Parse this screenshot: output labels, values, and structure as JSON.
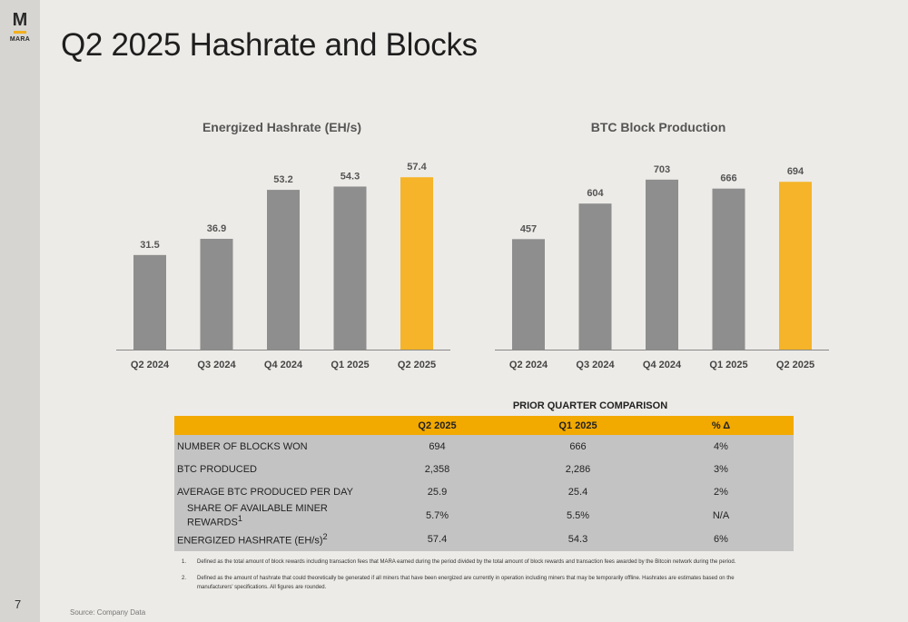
{
  "brand": {
    "letter": "M",
    "name": "MARA",
    "accent": "#f2b01e"
  },
  "page": {
    "title": "Q2 2025 Hashrate and Blocks",
    "number": "7",
    "source": "Source: Company Data"
  },
  "colors": {
    "bar": "#8e8e8e",
    "highlight": "#f5b429",
    "axis": "#888888",
    "table_header": "#f2a900",
    "table_body": "#c3c3c3"
  },
  "chart_data": [
    {
      "type": "bar",
      "title": "Energized Hashrate (EH/s)",
      "categories": [
        "Q2 2024",
        "Q3 2024",
        "Q4 2024",
        "Q1 2025",
        "Q2 2025"
      ],
      "values": [
        31.5,
        36.9,
        53.2,
        54.3,
        57.4
      ],
      "value_labels": [
        "31.5",
        "36.9",
        "53.2",
        "54.3",
        "57.4"
      ],
      "highlight_index": 4,
      "xlabel": "",
      "ylabel": "",
      "ylim": [
        0,
        62
      ],
      "grid": false,
      "legend": "none"
    },
    {
      "type": "bar",
      "title": "BTC Block Production",
      "categories": [
        "Q2 2024",
        "Q3 2024",
        "Q4 2024",
        "Q1 2025",
        "Q2 2025"
      ],
      "values": [
        457,
        604,
        703,
        666,
        694
      ],
      "value_labels": [
        "457",
        "604",
        "703",
        "666",
        "694"
      ],
      "highlight_index": 4,
      "xlabel": "",
      "ylabel": "",
      "ylim": [
        0,
        770
      ],
      "grid": false,
      "legend": "none"
    }
  ],
  "comparison": {
    "title": "PRIOR QUARTER COMPARISON",
    "headers": [
      "",
      "Q2 2025",
      "Q1 2025",
      "% Δ"
    ],
    "rows": [
      {
        "label": "NUMBER OF BLOCKS WON",
        "sup": "",
        "indent": false,
        "q2": "694",
        "q1": "666",
        "delta": "4%"
      },
      {
        "label": "BTC PRODUCED",
        "sup": "",
        "indent": false,
        "q2": "2,358",
        "q1": "2,286",
        "delta": "3%"
      },
      {
        "label": "AVERAGE BTC PRODUCED PER DAY",
        "sup": "",
        "indent": false,
        "q2": "25.9",
        "q1": "25.4",
        "delta": "2%"
      },
      {
        "label": "SHARE OF AVAILABLE MINER REWARDS",
        "sup": "1",
        "indent": true,
        "q2": "5.7%",
        "q1": "5.5%",
        "delta": "N/A"
      },
      {
        "label": "ENERGIZED HASHRATE (EH/s)",
        "sup": "2",
        "indent": false,
        "q2": "57.4",
        "q1": "54.3",
        "delta": "6%"
      }
    ]
  },
  "footnotes": [
    {
      "num": "1.",
      "text": "Defined as the total amount of block rewards including transaction fees that MARA earned during the period divided by the total amount of block rewards and transaction fees awarded by the Bitcoin network during the period."
    },
    {
      "num": "2.",
      "text": "Defined as the amount of hashrate that could theoretically be generated if all miners that have been energized are currently in operation including miners that may be temporarily offline. Hashrates are estimates based on the manufacturers' specifications. All figures are rounded."
    }
  ]
}
